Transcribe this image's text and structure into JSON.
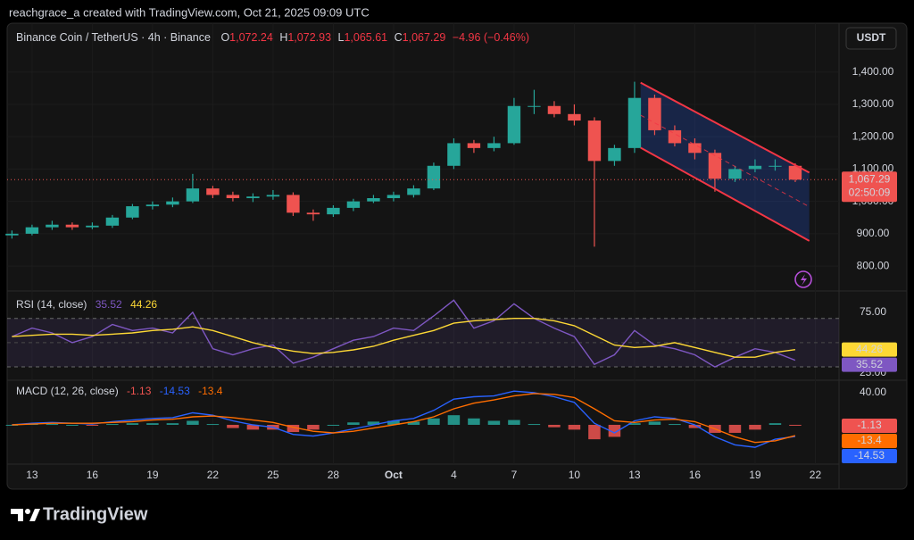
{
  "header": {
    "credit": "reachgrace_a created with TradingView.com, Oct 21, 2025 09:09 UTC",
    "symbol": "Binance Coin / TetherUS · 4h · Binance",
    "ohlc": [
      {
        "key": "O",
        "value": "1,072.24"
      },
      {
        "key": "H",
        "value": "1,072.93"
      },
      {
        "key": "L",
        "value": "1,065.61"
      },
      {
        "key": "C",
        "value": "1,067.29"
      }
    ],
    "change": "−4.96 (−0.46%)",
    "currency": "USDT",
    "logo": "TradingView"
  },
  "chart_data": [
    {
      "type": "candlestick",
      "x": [
        12,
        13,
        14,
        15,
        16,
        17,
        18,
        19,
        20,
        21,
        22,
        23,
        24,
        25,
        26,
        27,
        28,
        29,
        30,
        31,
        32,
        33,
        34,
        35,
        36,
        37,
        38,
        39,
        40,
        41,
        42,
        43,
        44,
        45,
        46,
        47,
        48,
        49,
        50,
        51
      ],
      "open": [
        895,
        900,
        920,
        928,
        920,
        925,
        950,
        985,
        990,
        1000,
        1040,
        1020,
        1010,
        1015,
        1020,
        965,
        960,
        980,
        1000,
        1010,
        1020,
        1040,
        1110,
        1180,
        1165,
        1180,
        1295,
        1295,
        1270,
        1250,
        1125,
        1165,
        1320,
        1220,
        1180,
        1150,
        1070,
        1100,
        1110,
        1110
      ],
      "high": [
        910,
        928,
        940,
        935,
        935,
        958,
        992,
        1000,
        1012,
        1085,
        1048,
        1030,
        1025,
        1035,
        1028,
        975,
        988,
        1008,
        1020,
        1030,
        1050,
        1120,
        1195,
        1190,
        1200,
        1320,
        1345,
        1310,
        1300,
        1260,
        1175,
        1370,
        1330,
        1235,
        1195,
        1160,
        1110,
        1130,
        1130,
        1118
      ],
      "low": [
        885,
        895,
        912,
        912,
        914,
        918,
        945,
        975,
        982,
        995,
        1010,
        1000,
        998,
        1005,
        955,
        940,
        952,
        970,
        995,
        1000,
        1012,
        1035,
        1100,
        1150,
        1155,
        1175,
        1270,
        1260,
        1235,
        860,
        1110,
        1150,
        1205,
        1170,
        1130,
        1030,
        1060,
        1090,
        1095,
        1060
      ],
      "close": [
        900,
        920,
        928,
        920,
        925,
        950,
        985,
        990,
        1000,
        1040,
        1020,
        1010,
        1015,
        1020,
        965,
        960,
        980,
        1000,
        1010,
        1020,
        1040,
        1110,
        1180,
        1165,
        1180,
        1295,
        1295,
        1270,
        1250,
        1125,
        1165,
        1320,
        1220,
        1180,
        1150,
        1070,
        1100,
        1110,
        1110,
        1067.29
      ],
      "up_color": "#26a69a",
      "down_color": "#ef5350",
      "xlim": [
        11.76,
        53.18
      ],
      "xticks": [
        13,
        16,
        19,
        22,
        25,
        28,
        {
          "value": 31,
          "label": "Oct"
        },
        {
          "value": 34,
          "label": "4"
        },
        {
          "value": 37,
          "label": "7"
        },
        {
          "value": 40,
          "label": "10"
        },
        {
          "value": 43,
          "label": "13"
        },
        {
          "value": 46,
          "label": "16"
        },
        {
          "value": 49,
          "label": "19"
        },
        {
          "value": 52,
          "label": "22"
        }
      ],
      "ylim": [
        723,
        1551
      ],
      "yticks": [
        {
          "value": 800,
          "label": "800.00"
        },
        {
          "value": 900,
          "label": "900.00"
        },
        {
          "value": 1000,
          "label": "1,000.00"
        },
        {
          "value": 1100,
          "label": "1,100.00"
        },
        {
          "value": 1200,
          "label": "1,200.00"
        },
        {
          "value": 1300,
          "label": "1,300.00"
        },
        {
          "value": 1400,
          "label": "1,400.00"
        }
      ],
      "last_price_label": "1,067.29",
      "countdown": "02:50:09",
      "channel": {
        "x": [
          43.3,
          51.7
        ],
        "upper": [
          1367,
          1089
        ],
        "lower": [
          1166,
          878
        ],
        "color": "#f23645",
        "fill": "#2962ff"
      }
    },
    {
      "type": "line",
      "title": "RSI (14, close)",
      "series": [
        {
          "color": "#7e57c2",
          "values": [
            55,
            62,
            58,
            50,
            55,
            65,
            60,
            62,
            58,
            75,
            45,
            40,
            45,
            48,
            33,
            38,
            45,
            52,
            55,
            62,
            60,
            72,
            85,
            62,
            68,
            82,
            70,
            62,
            55,
            32,
            40,
            60,
            48,
            45,
            40,
            30,
            38,
            45,
            42,
            35.52
          ]
        },
        {
          "color": "#fdd835",
          "values": [
            55,
            56,
            57,
            57,
            56,
            57,
            58,
            60,
            61,
            63,
            60,
            55,
            50,
            46,
            43,
            41,
            42,
            44,
            47,
            52,
            56,
            60,
            66,
            68,
            69,
            70,
            70,
            68,
            64,
            56,
            48,
            46,
            47,
            50,
            46,
            42,
            38,
            38,
            42,
            44.26
          ]
        }
      ],
      "ylim": [
        19,
        92.6
      ],
      "yticks": [
        {
          "value": 25,
          "label": "25.00"
        },
        {
          "value": 75,
          "label": "75.00"
        }
      ],
      "band": [
        30,
        70
      ],
      "band_color": "#7e57c2"
    },
    {
      "type": "macd",
      "title": "MACD (12, 26, close)",
      "series": [
        {
          "style": "histogram",
          "color": "#ef5350",
          "up_color": "#26a69a",
          "values": [
            0,
            1,
            1,
            0,
            -1,
            1,
            2,
            2,
            2,
            5,
            1,
            -4,
            -6,
            -6,
            -9,
            -6,
            0,
            3,
            4,
            5,
            4,
            8,
            12,
            8,
            5,
            6,
            1,
            -3,
            -6,
            -18,
            -15,
            2,
            4,
            1,
            -4,
            -10,
            -10,
            -6,
            2,
            -1.13
          ]
        },
        {
          "style": "line",
          "color": "#2962ff",
          "values": [
            0,
            2,
            3,
            2,
            1,
            4,
            6,
            8,
            9,
            15,
            12,
            5,
            0,
            -3,
            -12,
            -14,
            -10,
            -5,
            0,
            5,
            8,
            18,
            32,
            35,
            36,
            42,
            40,
            35,
            28,
            2,
            -10,
            5,
            10,
            8,
            0,
            -15,
            -25,
            -28,
            -18,
            -14.53
          ]
        },
        {
          "style": "line",
          "color": "#ff6d00",
          "values": [
            0,
            1,
            2,
            2,
            2,
            3,
            4,
            6,
            7,
            10,
            11,
            9,
            6,
            3,
            -3,
            -8,
            -10,
            -8,
            -4,
            0,
            4,
            10,
            20,
            27,
            31,
            36,
            39,
            38,
            34,
            20,
            5,
            3,
            6,
            7,
            4,
            -5,
            -15,
            -22,
            -20,
            -13.4
          ]
        }
      ],
      "ylim": [
        -49,
        55.6
      ],
      "yticks": [
        {
          "value": 40,
          "label": "40.00"
        }
      ]
    }
  ]
}
